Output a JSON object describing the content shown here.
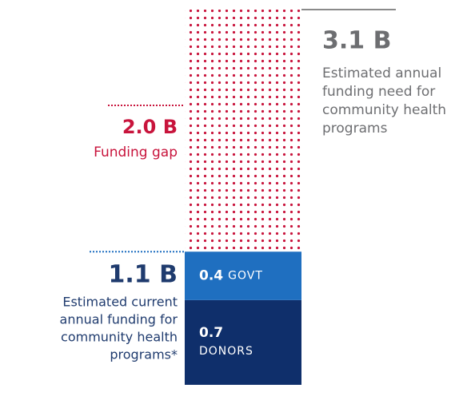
{
  "chart_data": {
    "type": "stacked-bar",
    "ylim": [
      0,
      3.1
    ],
    "series": [
      {
        "name": "DONORS",
        "color": "#0f2f6b",
        "values": [
          0.7
        ],
        "value_labels": [
          "0.7"
        ]
      },
      {
        "name": "GOVT",
        "color": "#1f6fc0",
        "values": [
          0.4
        ],
        "value_labels": [
          "0.4"
        ]
      },
      {
        "name": "Funding gap",
        "color": "#c8143c",
        "values": [
          2.0
        ],
        "value_labels": [
          "2.0 B"
        ],
        "pattern": "dots"
      }
    ],
    "annotations": [
      {
        "value": 3.1,
        "label": "3.1 B",
        "text": [
          "Estimated annual",
          "funding need for",
          "community health",
          "programs"
        ],
        "color": "#6d6e71"
      },
      {
        "value": 1.1,
        "label": "1.1 B",
        "text": [
          "Estimated current",
          "annual funding for",
          "community health",
          "programs*"
        ],
        "color": "#1f3b6e"
      }
    ]
  }
}
